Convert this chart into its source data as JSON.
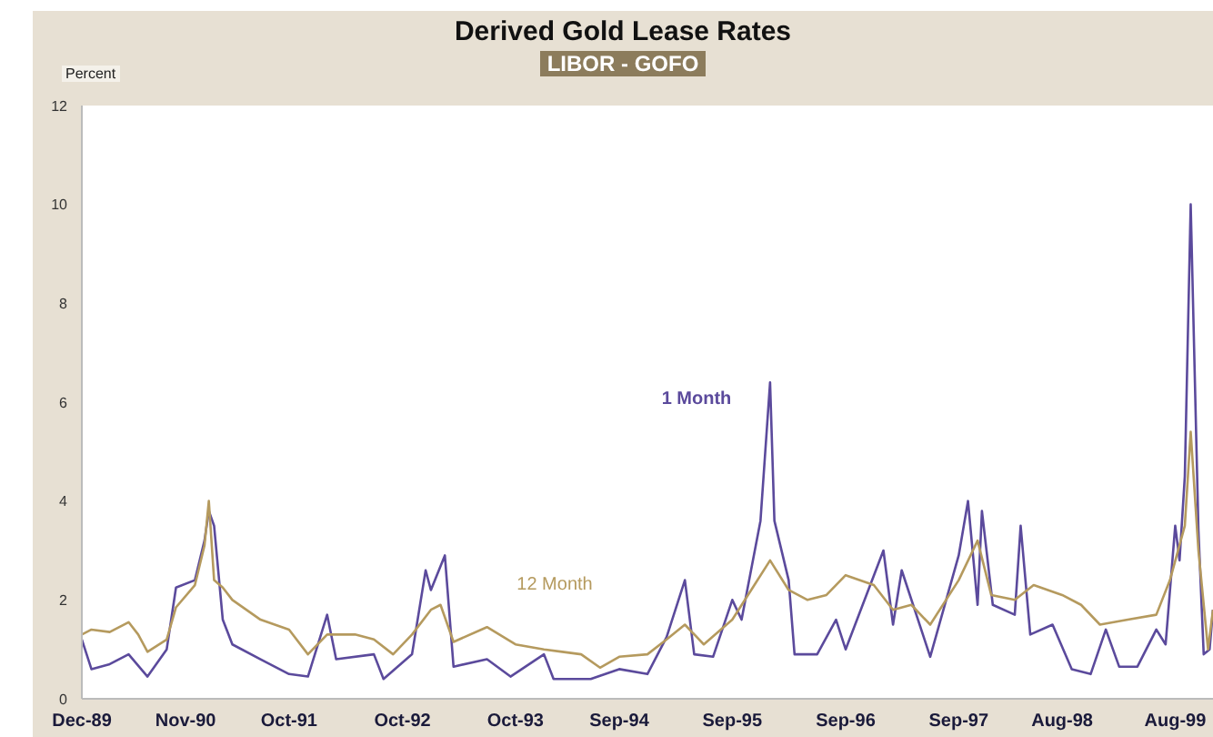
{
  "chart_data": {
    "type": "line",
    "title": "Derived Gold Lease Rates",
    "subtitle": "LIBOR - GOFO",
    "ylabel": "Percent",
    "xlim": [
      "1989-12",
      "1999-12"
    ],
    "xticks": [
      {
        "value": "1989-12",
        "label": "Dec-89"
      },
      {
        "value": "1990-11",
        "label": "Nov-90"
      },
      {
        "value": "1991-10",
        "label": "Oct-91"
      },
      {
        "value": "1992-10",
        "label": "Oct-92"
      },
      {
        "value": "1993-10",
        "label": "Oct-93"
      },
      {
        "value": "1994-09",
        "label": "Sep-94"
      },
      {
        "value": "1995-09",
        "label": "Sep-95"
      },
      {
        "value": "1996-09",
        "label": "Sep-96"
      },
      {
        "value": "1997-09",
        "label": "Sep-97"
      },
      {
        "value": "1998-08",
        "label": "Aug-98"
      },
      {
        "value": "1999-08",
        "label": "Aug-99"
      }
    ],
    "ylim": [
      0,
      12
    ],
    "yticks": [
      0,
      2,
      4,
      6,
      8,
      10,
      12
    ],
    "grid": false,
    "marker": "none",
    "line_style": "solid",
    "series": [
      {
        "name": "1 Month",
        "color": "#5b4a9c",
        "x": [
          "1989-12",
          "1990-01",
          "1990-03",
          "1990-05",
          "1990-07",
          "1990-09",
          "1990-10",
          "1990-12",
          "1991-01",
          "1991-01-15",
          "1991-02",
          "1991-03",
          "1991-04",
          "1991-07",
          "1991-10",
          "1991-12",
          "1992-02",
          "1992-03",
          "1992-07",
          "1992-08",
          "1992-11",
          "1992-12-15",
          "1993-01",
          "1993-02-15",
          "1993-03-15",
          "1993-07",
          "1993-09-15",
          "1994-01",
          "1994-02",
          "1994-06",
          "1994-09",
          "1994-12",
          "1995-02",
          "1995-04",
          "1995-05",
          "1995-07",
          "1995-09",
          "1995-10",
          "1995-12",
          "1996-01",
          "1996-01-15",
          "1996-03",
          "1996-03-20",
          "1996-06",
          "1996-08",
          "1996-09",
          "1997-01",
          "1997-02",
          "1997-03",
          "1997-06",
          "1997-09",
          "1997-10",
          "1997-11",
          "1997-11-15",
          "1997-12-20",
          "1998-03",
          "1998-03-20",
          "1998-04-20",
          "1998-07",
          "1998-09",
          "1998-11",
          "1998-12-20",
          "1999-02",
          "1999-04",
          "1999-06",
          "1999-07",
          "1999-08",
          "1999-08-15",
          "1999-09",
          "1999-09-20",
          "1999-10-15",
          "1999-11",
          "1999-11-20",
          "1999-12"
        ],
        "values": [
          1.2,
          0.6,
          0.7,
          0.9,
          0.45,
          1.0,
          2.25,
          2.4,
          3.2,
          3.8,
          3.5,
          1.6,
          1.1,
          0.8,
          0.5,
          0.45,
          1.7,
          0.8,
          0.9,
          0.4,
          0.9,
          2.6,
          2.2,
          2.9,
          0.65,
          0.8,
          0.45,
          0.9,
          0.4,
          0.4,
          0.6,
          0.5,
          1.25,
          2.4,
          0.9,
          0.85,
          2.0,
          1.6,
          3.6,
          6.4,
          3.6,
          2.4,
          0.9,
          0.9,
          1.6,
          1.0,
          3.0,
          1.5,
          2.6,
          0.85,
          2.9,
          4.0,
          1.9,
          3.8,
          1.9,
          1.7,
          3.5,
          1.3,
          1.5,
          0.6,
          0.5,
          1.4,
          0.65,
          0.65,
          1.4,
          1.1,
          3.5,
          2.8,
          4.5,
          10.0,
          3.4,
          0.9,
          1.0,
          1.8
        ]
      },
      {
        "name": "12 Month",
        "color": "#b59a5e",
        "x": [
          "1989-12",
          "1990-01",
          "1990-03",
          "1990-05",
          "1990-06",
          "1990-07",
          "1990-09",
          "1990-10",
          "1990-12",
          "1991-01",
          "1991-01-15",
          "1991-02",
          "1991-03",
          "1991-04",
          "1991-07",
          "1991-10",
          "1991-12",
          "1992-02",
          "1992-05",
          "1992-07",
          "1992-09",
          "1992-11",
          "1993-01",
          "1993-02",
          "1993-03-15",
          "1993-07",
          "1993-10",
          "1994-01",
          "1994-03",
          "1994-05",
          "1994-07",
          "1994-09",
          "1994-12",
          "1995-02",
          "1995-04",
          "1995-06",
          "1995-09",
          "1995-11",
          "1996-01",
          "1996-03",
          "1996-05",
          "1996-07",
          "1996-09",
          "1996-12",
          "1997-02",
          "1997-04",
          "1997-06",
          "1997-09",
          "1997-11",
          "1997-12-15",
          "1998-03",
          "1998-05",
          "1998-08",
          "1998-10",
          "1998-12",
          "1999-03",
          "1999-06",
          "1999-07-15",
          "1999-09",
          "1999-09-20",
          "1999-10-15",
          "1999-11-15",
          "1999-12"
        ],
        "values": [
          1.3,
          1.4,
          1.35,
          1.55,
          1.3,
          0.95,
          1.2,
          1.85,
          2.3,
          3.1,
          4.0,
          2.4,
          2.25,
          2.0,
          1.6,
          1.4,
          0.9,
          1.3,
          1.3,
          1.2,
          0.9,
          1.3,
          1.8,
          1.9,
          1.15,
          1.45,
          1.1,
          1.0,
          0.95,
          0.9,
          0.63,
          0.85,
          0.9,
          1.2,
          1.5,
          1.1,
          1.6,
          2.2,
          2.8,
          2.2,
          2.0,
          2.1,
          2.5,
          2.3,
          1.8,
          1.9,
          1.5,
          2.4,
          3.2,
          2.1,
          2.0,
          2.3,
          2.1,
          1.9,
          1.5,
          1.6,
          1.7,
          2.4,
          3.5,
          5.4,
          3.0,
          1.0,
          1.8
        ]
      }
    ]
  }
}
